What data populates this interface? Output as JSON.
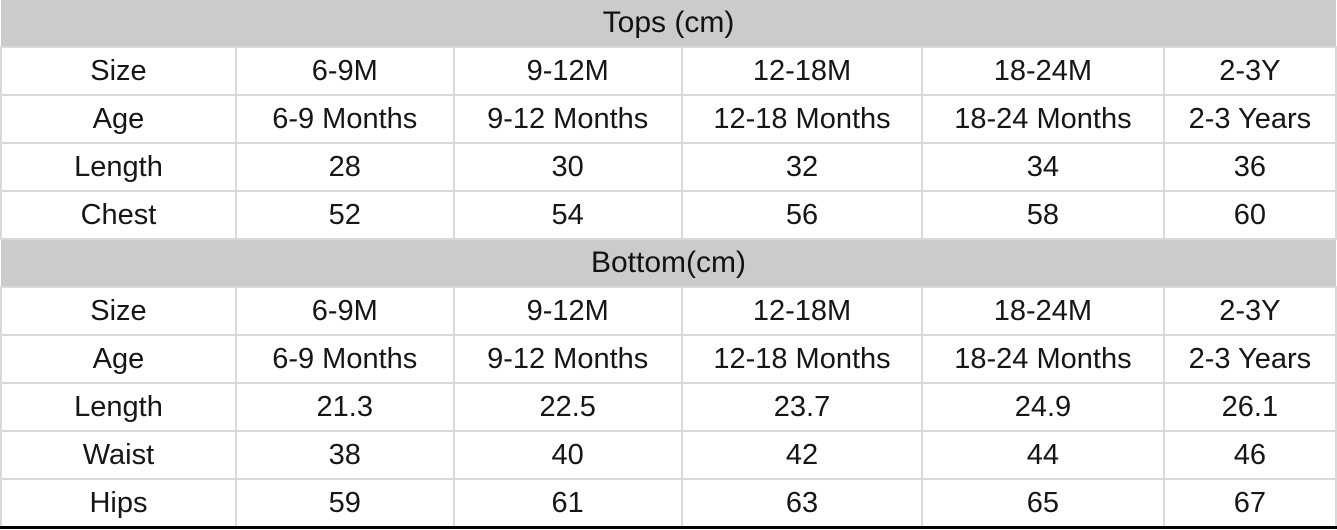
{
  "colors": {
    "header_bg": "#cbcbcb",
    "cell_border": "#d9d9d9",
    "bottom_border": "#000000",
    "text": "#161616",
    "page_bg": "#ffffff"
  },
  "tables": [
    {
      "title": "Tops (cm)",
      "rows": [
        [
          "Size",
          "6-9M",
          "9-12M",
          "12-18M",
          "18-24M",
          "2-3Y"
        ],
        [
          "Age",
          "6-9 Months",
          "9-12 Months",
          "12-18 Months",
          "18-24 Months",
          "2-3 Years"
        ],
        [
          "Length",
          "28",
          "30",
          "32",
          "34",
          "36"
        ],
        [
          "Chest",
          "52",
          "54",
          "56",
          "58",
          "60"
        ]
      ]
    },
    {
      "title": "Bottom(cm)",
      "rows": [
        [
          "Size",
          "6-9M",
          "9-12M",
          "12-18M",
          "18-24M",
          "2-3Y"
        ],
        [
          "Age",
          "6-9 Months",
          "9-12 Months",
          "12-18 Months",
          "18-24 Months",
          "2-3 Years"
        ],
        [
          "Length",
          "21.3",
          "22.5",
          "23.7",
          "24.9",
          "26.1"
        ],
        [
          "Waist",
          "38",
          "40",
          "42",
          "44",
          "46"
        ],
        [
          "Hips",
          "59",
          "61",
          "63",
          "65",
          "67"
        ]
      ]
    }
  ],
  "chart_data": {
    "type": "table",
    "sections": [
      {
        "title": "Tops (cm)",
        "columns": [
          "Size",
          "6-9M",
          "9-12M",
          "12-18M",
          "18-24M",
          "2-3Y"
        ],
        "records": {
          "Age": [
            "6-9 Months",
            "9-12 Months",
            "12-18 Months",
            "18-24 Months",
            "2-3 Years"
          ],
          "Length": [
            28,
            30,
            32,
            34,
            36
          ],
          "Chest": [
            52,
            54,
            56,
            58,
            60
          ]
        }
      },
      {
        "title": "Bottom(cm)",
        "columns": [
          "Size",
          "6-9M",
          "9-12M",
          "12-18M",
          "18-24M",
          "2-3Y"
        ],
        "records": {
          "Age": [
            "6-9 Months",
            "9-12 Months",
            "12-18 Months",
            "18-24 Months",
            "2-3 Years"
          ],
          "Length": [
            21.3,
            22.5,
            23.7,
            24.9,
            26.1
          ],
          "Waist": [
            38,
            40,
            42,
            44,
            46
          ],
          "Hips": [
            59,
            61,
            63,
            65,
            67
          ]
        }
      }
    ]
  }
}
